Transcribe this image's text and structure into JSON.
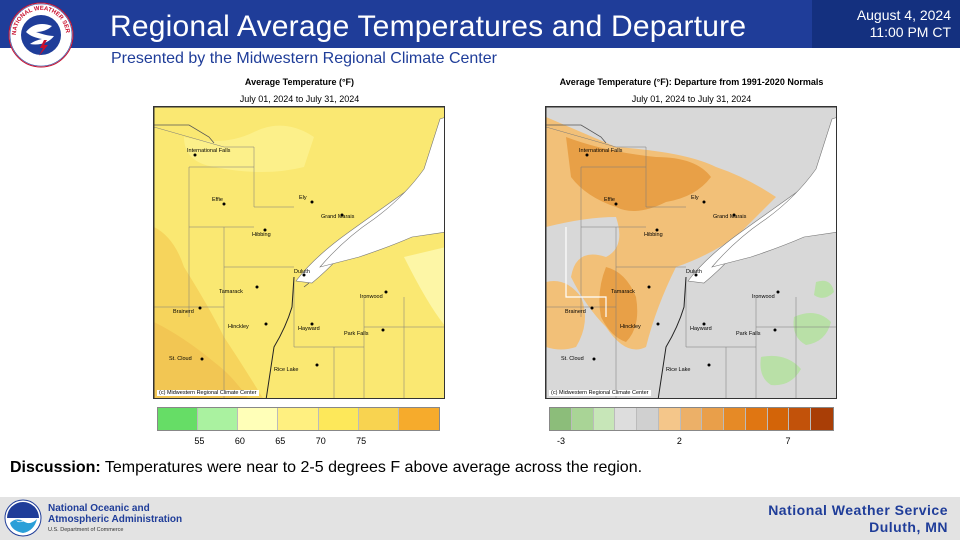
{
  "header": {
    "title": "Regional Average Temperatures and Departure",
    "subtitle": "Presented by the Midwestern Regional Climate Center",
    "date": "August 4, 2024",
    "time": "11:00 PM CT",
    "logo_text": "NATIONAL WEATHER SERVICE",
    "logo_icon": "nws-logo-icon"
  },
  "left_map": {
    "title": "Average Temperature (°F)",
    "range": "July 01, 2024 to July 31, 2024",
    "copyright": "(c) Midwestern Regional Climate Center",
    "legend_colors": [
      "#66dd66",
      "#aaf2a0",
      "#ffffb8",
      "#fff080",
      "#fde85a",
      "#f8d350",
      "#f6ab2c"
    ],
    "ticks": [
      "55",
      "60",
      "65",
      "70",
      "75"
    ]
  },
  "right_map": {
    "title": "Average Temperature (°F): Departure from 1991-2020 Normals",
    "range": "July 01, 2024 to July 31, 2024",
    "copyright": "(c) Midwestern Regional Climate Center",
    "legend_colors": [
      "#8cbd7a",
      "#a9d496",
      "#c7e6b8",
      "#dddddd",
      "#d0d0d0",
      "#f4c68a",
      "#ecb068",
      "#e99f4a",
      "#e68a26",
      "#e07612",
      "#d36408",
      "#c2520a",
      "#a93e06"
    ],
    "ticks": [
      "-3",
      "2",
      "7"
    ]
  },
  "cities": [
    {
      "name": "International Falls"
    },
    {
      "name": "Effie"
    },
    {
      "name": "Ely"
    },
    {
      "name": "Grand Marais"
    },
    {
      "name": "Hibbing"
    },
    {
      "name": "Duluth"
    },
    {
      "name": "Tamarack"
    },
    {
      "name": "Brainerd"
    },
    {
      "name": "Ironwood"
    },
    {
      "name": "Hinckley"
    },
    {
      "name": "Hayward"
    },
    {
      "name": "Park Falls"
    },
    {
      "name": "St. Cloud"
    },
    {
      "name": "Rice Lake"
    }
  ],
  "discussion": {
    "label": "Discussion:",
    "text": " Temperatures were near to 2-5 degrees F above average across the region."
  },
  "footer": {
    "noaa_line1": "National Oceanic and",
    "noaa_line2": "Atmospheric Administration",
    "noaa_dept": "U.S. Department of Commerce",
    "office_line1": "National Weather Service",
    "office_line2": "Duluth, MN",
    "logo_icon": "noaa-logo-icon"
  }
}
